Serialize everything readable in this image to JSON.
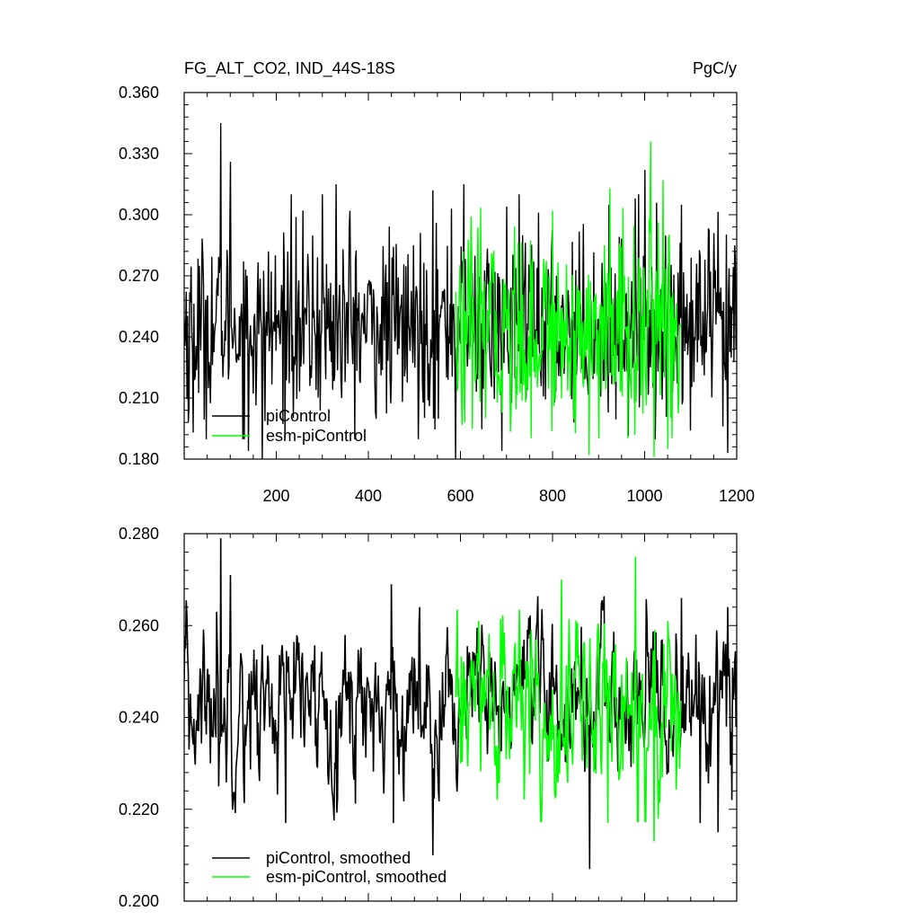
{
  "chart_data": [
    {
      "type": "line",
      "title": "FG_ALT_CO2, IND_44S-18S",
      "units": "PgC/y",
      "xlim": [
        0,
        1200
      ],
      "ylim": [
        0.18,
        0.36
      ],
      "xticks": [
        200,
        400,
        600,
        800,
        1000,
        1200
      ],
      "xtick_labels": [
        "200",
        "400",
        "600",
        "800",
        "1000",
        "1200"
      ],
      "yticks": [
        0.18,
        0.21,
        0.24,
        0.27,
        0.3,
        0.33,
        0.36
      ],
      "ytick_labels": [
        "0.180",
        "0.210",
        "0.240",
        "0.270",
        "0.300",
        "0.330",
        "0.360"
      ],
      "legend_position": "bottom-left",
      "series": [
        {
          "name": "piControl",
          "color": "#000000",
          "x_start": 0,
          "x_end": 1200,
          "mean": 0.245,
          "std": 0.022,
          "min": 0.18,
          "max": 0.345,
          "peaks": [
            [
              80,
              0.345
            ],
            [
              100,
              0.326
            ],
            [
              10,
              0.206
            ],
            [
              20,
              0.193
            ],
            [
              140,
              0.184
            ],
            [
              170,
              0.18
            ],
            [
              233,
              0.31
            ],
            [
              300,
              0.31
            ],
            [
              330,
              0.315
            ],
            [
              360,
              0.302
            ],
            [
              540,
              0.312
            ],
            [
              580,
              0.303
            ],
            [
              608,
              0.315
            ],
            [
              700,
              0.304
            ],
            [
              770,
              0.301
            ],
            [
              980,
              0.308
            ],
            [
              1000,
              0.322
            ],
            [
              1080,
              0.305
            ],
            [
              1150,
              0.291
            ],
            [
              1180,
              0.183
            ],
            [
              1195,
              0.285
            ],
            [
              590,
              0.18
            ],
            [
              690,
              0.184
            ],
            [
              1100,
              0.194
            ],
            [
              1170,
              0.196
            ]
          ]
        },
        {
          "name": "esm-piControl",
          "color": "#00ff00",
          "x_start": 590,
          "x_end": 1080,
          "mean": 0.243,
          "std": 0.024,
          "min": 0.181,
          "max": 0.336,
          "peaks": [
            [
              1013,
              0.336
            ],
            [
              1040,
              0.317
            ],
            [
              925,
              0.313
            ],
            [
              800,
              0.302
            ],
            [
              880,
              0.182
            ],
            [
              1020,
              0.181
            ],
            [
              1050,
              0.185
            ],
            [
              900,
              0.19
            ],
            [
              610,
              0.198
            ]
          ]
        }
      ]
    },
    {
      "type": "line",
      "xlim": [
        0,
        1200
      ],
      "ylim": [
        0.2,
        0.28
      ],
      "xticks": [
        200,
        400,
        600,
        800,
        1000,
        1200
      ],
      "yticks": [
        0.2,
        0.22,
        0.24,
        0.26,
        0.28
      ],
      "ytick_labels": [
        "0.200",
        "0.220",
        "0.240",
        "0.260",
        "0.280"
      ],
      "legend_position": "bottom-left",
      "series": [
        {
          "name": "piControl, smoothed",
          "color": "#000000",
          "x_start": 0,
          "x_end": 1200,
          "mean": 0.243,
          "std": 0.0085,
          "min": 0.207,
          "max": 0.279,
          "peaks": [
            [
              80,
              0.279
            ],
            [
              100,
              0.271
            ],
            [
              70,
              0.263
            ],
            [
              10,
              0.233
            ],
            [
              75,
              0.225
            ],
            [
              220,
              0.217
            ],
            [
              450,
              0.269
            ],
            [
              455,
              0.217
            ],
            [
              540,
              0.21
            ],
            [
              560,
              0.235
            ],
            [
              880,
              0.207
            ],
            [
              1080,
              0.266
            ],
            [
              1120,
              0.217
            ],
            [
              1160,
              0.215
            ],
            [
              1180,
              0.264
            ],
            [
              1190,
              0.222
            ]
          ]
        },
        {
          "name": "esm-piControl, smoothed",
          "color": "#00ff00",
          "x_start": 590,
          "x_end": 1080,
          "mean": 0.242,
          "std": 0.01,
          "min": 0.213,
          "max": 0.275,
          "peaks": [
            [
              980,
              0.275
            ],
            [
              820,
              0.27
            ],
            [
              1050,
              0.261
            ],
            [
              640,
              0.261
            ],
            [
              920,
              0.217
            ],
            [
              1020,
              0.213
            ],
            [
              1030,
              0.218
            ],
            [
              600,
              0.23
            ]
          ]
        }
      ]
    }
  ]
}
